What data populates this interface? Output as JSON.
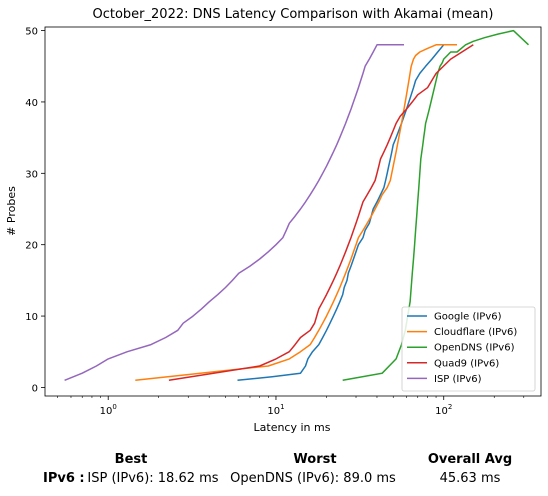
{
  "chart_data": {
    "type": "line",
    "title": "October_2022: DNS Latency Comparison with Akamai (mean)",
    "xlabel": "Latency in ms",
    "ylabel": "# Probes",
    "xscale": "log",
    "xlim": [
      0.42,
      380
    ],
    "ylim": [
      -1.2,
      50.5
    ],
    "xticks": [
      {
        "value": 1,
        "label": "10^0"
      },
      {
        "value": 10,
        "label": "10^1"
      },
      {
        "value": 100,
        "label": "10^2"
      }
    ],
    "yticks": [
      0,
      10,
      20,
      30,
      40,
      50
    ],
    "grid": false,
    "legend_position": "lower-right",
    "series": [
      {
        "name": "Google (IPv6)",
        "color": "#1f77b4",
        "x": [
          5.9,
          9.5,
          14,
          15,
          15.5,
          16.5,
          18,
          19,
          20,
          21,
          22,
          23,
          24,
          25,
          25.5,
          26.5,
          27,
          28,
          29,
          30,
          31,
          33,
          34,
          36,
          37,
          38,
          40,
          42,
          44,
          45,
          46,
          47,
          48,
          49,
          50,
          52,
          54,
          56,
          58,
          60,
          62,
          64,
          66,
          68,
          72,
          78,
          85,
          92,
          100,
          110
        ],
        "y": [
          1,
          1.5,
          2,
          3,
          4,
          5,
          6,
          7,
          8,
          9,
          10,
          11,
          12,
          13,
          14,
          15,
          16,
          17,
          18,
          19,
          20,
          21,
          22,
          23,
          24,
          25,
          26,
          27,
          28,
          29,
          30,
          31,
          32,
          33,
          34,
          35,
          36,
          37,
          38,
          39,
          40,
          41,
          42,
          43,
          44,
          45,
          46,
          47,
          48,
          48
        ]
      },
      {
        "name": "Cloudflare (IPv6)",
        "color": "#ff7f0e",
        "x": [
          1.45,
          9,
          12,
          14,
          16,
          17,
          18,
          19,
          20,
          21,
          22,
          23,
          24,
          25,
          26,
          27,
          28,
          29,
          30,
          31,
          33,
          35,
          37,
          39,
          41,
          43,
          46,
          48,
          50,
          52,
          54,
          56,
          58,
          60,
          62,
          64,
          66,
          68,
          72,
          80,
          90,
          100,
          110,
          120
        ],
        "y": [
          1,
          3,
          4,
          5,
          6,
          7,
          8,
          9,
          10,
          11,
          12,
          13,
          14,
          15,
          16,
          17,
          18,
          19,
          20,
          21,
          22,
          23,
          24,
          25,
          26,
          27,
          28,
          29,
          31,
          33,
          35,
          37,
          39,
          41,
          43,
          45,
          46,
          46.5,
          47,
          47.5,
          48,
          48,
          48,
          48
        ]
      },
      {
        "name": "OpenDNS (IPv6)",
        "color": "#2ca02c",
        "x": [
          25,
          43,
          52,
          56,
          59,
          61,
          63,
          64,
          65,
          66,
          67,
          68,
          69,
          70,
          71,
          72,
          73,
          74,
          75,
          76,
          77,
          78,
          80,
          82,
          84,
          86,
          88,
          90,
          92,
          95,
          98,
          100,
          105,
          110,
          120,
          135,
          150,
          175,
          210,
          260,
          320
        ],
        "y": [
          1,
          2,
          4,
          6,
          8,
          10,
          12,
          14,
          16,
          18,
          20,
          22,
          24,
          26,
          28,
          30,
          32,
          33,
          34,
          35,
          36,
          37,
          38,
          39,
          40,
          41,
          42,
          43,
          44,
          45,
          45.5,
          46,
          46.5,
          47,
          47,
          48,
          48.5,
          49,
          49.5,
          50,
          48
        ]
      },
      {
        "name": "Quad9 (IPv6)",
        "color": "#d62728",
        "x": [
          2.3,
          8,
          10,
          12,
          13,
          14,
          16,
          17,
          17.5,
          18,
          19,
          20,
          21,
          22,
          23,
          24,
          25,
          26,
          27,
          28,
          29,
          30,
          31,
          32,
          33,
          35,
          37,
          39,
          40,
          41,
          42,
          44,
          46,
          48,
          50,
          52,
          55,
          60,
          65,
          70,
          80,
          90,
          110,
          150
        ],
        "y": [
          1,
          3,
          4,
          5,
          6,
          7,
          8,
          9,
          10,
          11,
          12,
          13,
          14,
          15,
          16,
          17,
          18,
          19,
          20,
          21,
          22,
          23,
          24,
          25,
          26,
          27,
          28,
          29,
          30,
          31,
          32,
          33,
          34,
          35,
          36,
          37,
          38,
          39,
          40,
          41,
          42,
          44,
          46,
          48
        ]
      },
      {
        "name": "ISP (IPv6)",
        "color": "#9467bd",
        "x": [
          0.55,
          0.7,
          0.85,
          1.0,
          1.3,
          1.8,
          2.2,
          2.6,
          2.8,
          3.2,
          3.6,
          4.0,
          4.5,
          5.0,
          5.5,
          6.0,
          7.0,
          8.0,
          9.0,
          10.0,
          11.0,
          11.5,
          12.0,
          13.0,
          14.0,
          15.0,
          16.0,
          17.0,
          18.0,
          19.0,
          20.0,
          21.0,
          22.0,
          23.0,
          24.0,
          25.0,
          26.0,
          27.0,
          28.0,
          29.0,
          30.0,
          31.0,
          32.0,
          33.0,
          34.0,
          36.0,
          38.0,
          40.0,
          42.0,
          45.0,
          50.0,
          55.0,
          58.0
        ],
        "y": [
          1,
          2,
          3,
          4,
          5,
          6,
          7,
          8,
          9,
          10,
          11,
          12,
          13,
          14,
          15,
          16,
          17,
          18,
          19,
          20,
          21,
          22,
          23,
          24,
          25,
          26,
          27,
          28,
          29,
          30,
          31,
          32,
          33,
          34,
          35,
          36,
          37,
          38,
          39,
          40,
          41,
          42,
          43,
          44,
          45,
          46,
          47,
          48,
          48,
          48,
          48,
          48,
          48
        ]
      }
    ]
  },
  "summary": {
    "best_header": "Best",
    "worst_header": "Worst",
    "overall_avg_header": "Overall Avg",
    "row_label": "IPv6 :",
    "best_value": "ISP (IPv6): 18.62 ms",
    "worst_value": "OpenDNS (IPv6): 89.0 ms",
    "overall_avg_value": "45.63 ms"
  }
}
